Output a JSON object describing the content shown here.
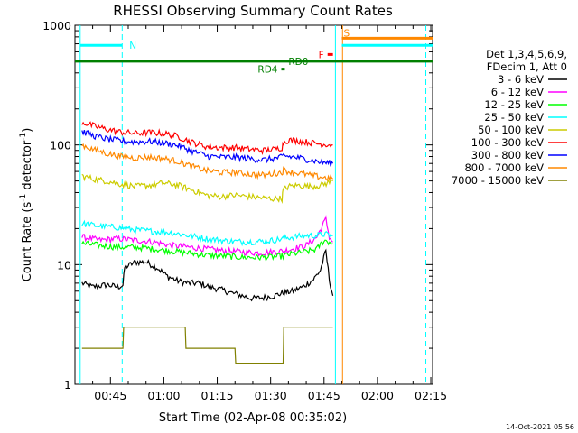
{
  "chart_data": {
    "type": "line",
    "title": "RHESSI Observing Summary Count Rates",
    "xlabel": "Start Time (02-Apr-08 00:35:02)",
    "ylabel_main": "Count Rate (s",
    "ylabel_sup1": "-1",
    "ylabel_mid": " detector",
    "ylabel_sup2": "-1",
    "ylabel_end": ")",
    "y_scale": "log",
    "ylim": [
      1,
      1000
    ],
    "xlim_minutes": [
      35.03,
      135.5
    ],
    "xticks": [
      {
        "label": "00:45",
        "minute": 45
      },
      {
        "label": "01:00",
        "minute": 60
      },
      {
        "label": "01:15",
        "minute": 75
      },
      {
        "label": "01:30",
        "minute": 90
      },
      {
        "label": "01:45",
        "minute": 105
      },
      {
        "label": "02:00",
        "minute": 120
      },
      {
        "label": "02:15",
        "minute": 135
      }
    ],
    "yticks": [
      {
        "label": "1",
        "value": 1
      },
      {
        "label": "10",
        "value": 10
      },
      {
        "label": "100",
        "value": 100
      },
      {
        "label": "1000",
        "value": 1000
      }
    ],
    "legend_header": [
      "Det 1,3,4,5,6,9,",
      "FDecim 1, Att 0"
    ],
    "legend_placement": "right",
    "timestamp": "14-Oct-2021 05:56",
    "series": [
      {
        "name": "3 - 6 keV",
        "color": "#000000",
        "x": [
          37,
          40,
          44,
          47,
          48.5,
          49,
          52,
          55,
          58,
          61,
          64,
          67,
          70,
          73,
          76,
          79,
          82,
          85,
          88,
          91,
          93.5,
          96,
          99,
          102,
          104,
          105.5,
          106.5,
          107.5
        ],
        "y": [
          7,
          6.5,
          6.8,
          6.5,
          6.7,
          9.5,
          10.5,
          10.5,
          9.5,
          8,
          7.3,
          7,
          7,
          6.5,
          6.2,
          5.8,
          5.5,
          5.2,
          5.3,
          5.5,
          5.8,
          6,
          6.5,
          7.5,
          9,
          13,
          7.5,
          5.5
        ]
      },
      {
        "name": "6 - 12 keV",
        "color": "#ff00ff",
        "x": [
          37,
          42,
          47,
          52,
          57,
          62,
          67,
          72,
          77,
          82,
          87,
          91,
          93.5,
          96,
          100,
          103,
          104.5,
          105.5,
          106.5,
          107.5
        ],
        "y": [
          17,
          16,
          16.5,
          16,
          15.5,
          14.5,
          14,
          13.5,
          13,
          12.8,
          12.5,
          12.8,
          13,
          13.5,
          14.5,
          17,
          21,
          24,
          17,
          15.5
        ]
      },
      {
        "name": "12 - 25 keV",
        "color": "#00ff00",
        "x": [
          37,
          42,
          47,
          52,
          57,
          62,
          67,
          72,
          77,
          82,
          87,
          91,
          93.5,
          96,
          100,
          103,
          105,
          107.5
        ],
        "y": [
          15,
          14.5,
          14,
          14,
          13.5,
          13,
          12.5,
          12,
          11.8,
          11.5,
          11.5,
          11.6,
          11.8,
          12.3,
          12.8,
          13.5,
          16,
          15
        ]
      },
      {
        "name": "25 - 50 keV",
        "color": "#00ffff",
        "x": [
          37,
          42,
          47,
          52,
          57,
          62,
          67,
          72,
          77,
          82,
          87,
          91,
          93.5,
          96,
          100,
          103,
          105,
          107.5
        ],
        "y": [
          22,
          21,
          20.5,
          19.5,
          19,
          18.5,
          17.5,
          16.5,
          15.8,
          15.5,
          15.6,
          16,
          16.5,
          17,
          17.5,
          17.5,
          18,
          17.5
        ]
      },
      {
        "name": "50 - 100 keV",
        "color": "#cccc00",
        "x": [
          37,
          40,
          44,
          48,
          52,
          56,
          60,
          64,
          68,
          72,
          76,
          80,
          84,
          88,
          91,
          92,
          93.2,
          93.5,
          95,
          98,
          101,
          104,
          107.5
        ],
        "y": [
          55,
          52,
          50,
          47,
          45,
          46,
          48,
          46,
          42,
          38,
          37,
          38,
          37,
          36,
          35.5,
          36,
          35.5,
          42,
          45,
          46,
          45,
          46,
          50
        ]
      },
      {
        "name": "100 - 300 keV",
        "color": "#ff0000",
        "x": [
          37,
          40,
          44,
          48,
          52,
          56,
          60,
          64,
          68,
          72,
          76,
          80,
          84,
          88,
          91,
          93.2,
          93.6,
          95,
          98,
          101,
          104,
          107.5
        ],
        "y": [
          155,
          145,
          135,
          128,
          125,
          127,
          125,
          118,
          105,
          97,
          95,
          95,
          92,
          90,
          92,
          95,
          105,
          110,
          108,
          105,
          102,
          100
        ]
      },
      {
        "name": "300 - 800 keV",
        "color": "#0000ff",
        "x": [
          37,
          40,
          44,
          48,
          52,
          56,
          60,
          64,
          68,
          72,
          76,
          80,
          84,
          88,
          91,
          93.2,
          93.6,
          95,
          98,
          101,
          104,
          107.5
        ],
        "y": [
          130,
          120,
          112,
          108,
          106,
          107,
          104,
          99,
          89,
          81,
          79,
          79,
          77,
          75,
          77,
          79,
          82,
          80,
          78,
          75,
          72,
          70
        ]
      },
      {
        "name": "800 - 7000 keV",
        "color": "#ff8800",
        "x": [
          37,
          40,
          44,
          48,
          52,
          56,
          60,
          64,
          68,
          72,
          76,
          80,
          84,
          88,
          91,
          93.2,
          93.6,
          95,
          98,
          101,
          104,
          107.5
        ],
        "y": [
          100,
          92,
          85,
          80,
          78,
          79,
          77,
          73,
          66,
          61,
          59,
          59,
          57,
          56,
          58,
          59,
          62,
          60,
          58,
          56,
          54,
          52
        ]
      },
      {
        "name": "7000 - 15000 keV",
        "color": "#808000",
        "x": [
          37,
          48.5,
          48.7,
          66,
          66.2,
          80,
          80.2,
          93.5,
          93.7,
          107.5
        ],
        "y": [
          2,
          2,
          3,
          3,
          2,
          2,
          1.5,
          1.5,
          3,
          3
        ]
      }
    ],
    "flags": [
      {
        "label": "N",
        "color": "#00ffff",
        "x_start": 36.5,
        "x_end": 48.3,
        "y": 680
      },
      {
        "label": "S",
        "color": "#ff8800",
        "x_start": 110.0,
        "x_end": 135.5,
        "y": 780
      },
      {
        "label": "S_line2",
        "color": "#00ffff",
        "x_start": 110.0,
        "x_end": 135.5,
        "y": 680
      },
      {
        "label": "F",
        "color": "#ff0000",
        "x_start": 106.0,
        "x_end": 107.5,
        "y": 570
      },
      {
        "label": "RD0",
        "color": "#008000",
        "x_start": 35.03,
        "x_end": 135.5,
        "y": 500
      },
      {
        "label": "RD4",
        "color": "#008000",
        "x_start": 93.0,
        "x_end": 94.0,
        "y": 430
      }
    ],
    "vertical_lines": [
      {
        "minute": 36.5,
        "color": "#00ffff",
        "style": "solid"
      },
      {
        "minute": 48.3,
        "color": "#00ffff",
        "style": "dashed"
      },
      {
        "minute": 108.2,
        "color": "#00ffff",
        "style": "solid"
      },
      {
        "minute": 110.2,
        "color": "#ff8800",
        "style": "solid"
      },
      {
        "minute": 133.6,
        "color": "#00ffff",
        "style": "dashed"
      }
    ]
  }
}
